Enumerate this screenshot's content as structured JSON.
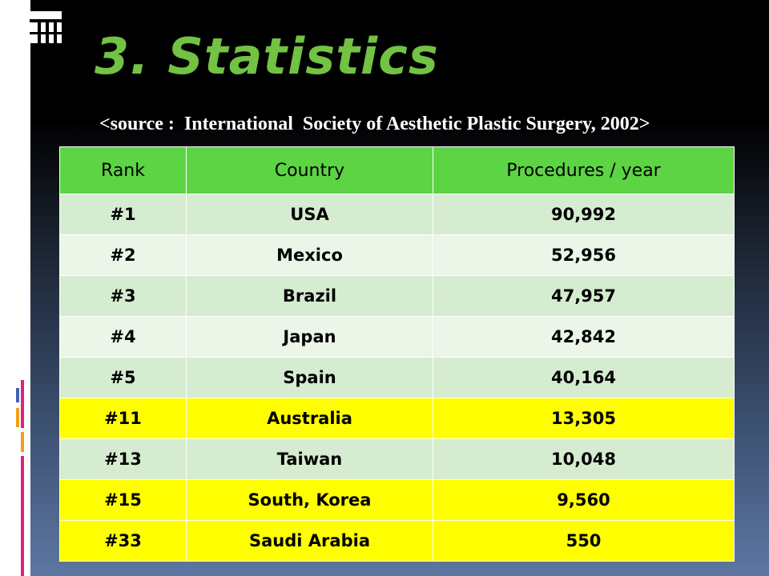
{
  "slide": {
    "title": "3. Statistics",
    "source": "<source :  International  Society of Aesthetic Plastic Surgery, 2002>"
  },
  "table": {
    "headers": [
      "Rank",
      "Country",
      "Procedures / year"
    ],
    "rows": [
      {
        "rank": "#1",
        "country": "USA",
        "procedures": "90,992",
        "highlight": false
      },
      {
        "rank": "#2",
        "country": "Mexico",
        "procedures": "52,956",
        "highlight": false
      },
      {
        "rank": "#3",
        "country": "Brazil",
        "procedures": "47,957",
        "highlight": false
      },
      {
        "rank": "#4",
        "country": "Japan",
        "procedures": "42,842",
        "highlight": false
      },
      {
        "rank": "#5",
        "country": "Spain",
        "procedures": "40,164",
        "highlight": false
      },
      {
        "rank": "#11",
        "country": "Australia",
        "procedures": "13,305",
        "highlight": true
      },
      {
        "rank": "#13",
        "country": "Taiwan",
        "procedures": "10,048",
        "highlight": false
      },
      {
        "rank": "#15",
        "country": "South, Korea",
        "procedures": "9,560",
        "highlight": true
      },
      {
        "rank": "#33",
        "country": "Saudi Arabia",
        "procedures": "550",
        "highlight": true
      }
    ]
  },
  "colors": {
    "title": "#72c243",
    "header_bg": "#5cd444",
    "row_light_green": "#d5ecd0",
    "row_pale_green": "#ebf5e8",
    "row_highlight": "#fefe00"
  }
}
